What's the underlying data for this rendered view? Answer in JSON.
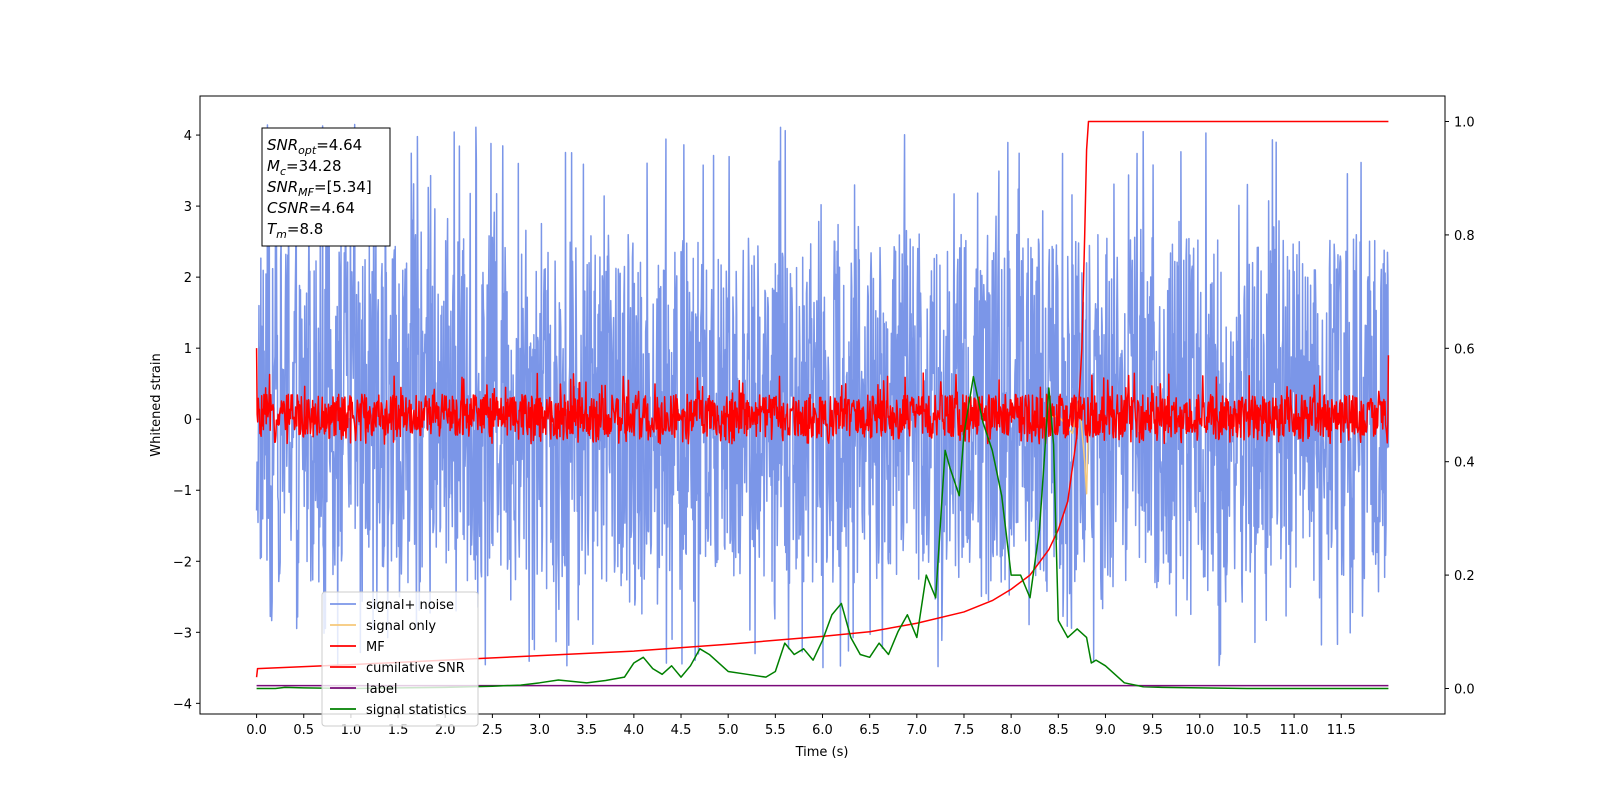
{
  "chart_data": {
    "type": "line",
    "title": "",
    "xlabel": "Time (s)",
    "ylabel": "Whitened strain",
    "xlim": [
      -0.6,
      12.6
    ],
    "ylim": [
      -4.15,
      4.55
    ],
    "y2lim": [
      -0.045,
      1.045
    ],
    "x_ticks": [
      0.0,
      0.5,
      1.0,
      1.5,
      2.0,
      2.5,
      3.0,
      3.5,
      4.0,
      4.5,
      5.0,
      5.5,
      6.0,
      6.5,
      7.0,
      7.5,
      8.0,
      8.5,
      9.0,
      9.5,
      10.0,
      10.5,
      11.0,
      11.5
    ],
    "x_tick_labels": [
      "0.0",
      "0.5",
      "1.0",
      "1.5",
      "2.0",
      "2.5",
      "3.0",
      "3.5",
      "4.0",
      "4.5",
      "5.0",
      "5.5",
      "6.0",
      "6.5",
      "7.0",
      "7.5",
      "8.0",
      "8.5",
      "9.0",
      "9.5",
      "10.0",
      "10.5",
      "11.0",
      "11.5"
    ],
    "y_ticks": [
      -4,
      -3,
      -2,
      -1,
      0,
      1,
      2,
      3,
      4
    ],
    "y_tick_labels": [
      "−4",
      "−3",
      "−2",
      "−1",
      "0",
      "1",
      "2",
      "3",
      "4"
    ],
    "y2_ticks": [
      0.0,
      0.2,
      0.4,
      0.6,
      0.8,
      1.0
    ],
    "y2_tick_labels": [
      "0.0",
      "0.2",
      "0.4",
      "0.6",
      "0.8",
      "1.0"
    ],
    "grid": false,
    "legend_placement": "lower-left",
    "series": [
      {
        "name": "signal+ noise",
        "axis": "left",
        "color": "#7b96e8",
        "kind": "noise",
        "t_range": [
          0.0,
          12.0
        ],
        "envelope_min": -3.5,
        "envelope_max": 4.15,
        "typical_range": [
          -2.3,
          2.6
        ]
      },
      {
        "name": "signal only",
        "axis": "left",
        "color": "#f6c87a",
        "kind": "chirp",
        "t_range": [
          8.3,
          8.82
        ],
        "x": [
          8.3,
          8.5,
          8.65,
          8.72,
          8.78,
          8.8,
          8.82
        ],
        "values": [
          0.0,
          0.05,
          -0.2,
          0.3,
          -0.6,
          -1.05,
          0.0
        ]
      },
      {
        "name": "MF",
        "axis": "left",
        "color": "#ff0000",
        "kind": "noise",
        "t_range": [
          0.0,
          12.0
        ],
        "envelope_min": -0.35,
        "envelope_max": 0.65,
        "typical_range": [
          -0.25,
          0.35
        ],
        "edge_values": {
          "start": 1.0,
          "end": 0.9
        }
      },
      {
        "name": "cumilative SNR",
        "axis": "right",
        "color": "#ff0000",
        "kind": "curve",
        "x": [
          0.0,
          0.01,
          1.0,
          2.0,
          3.0,
          4.0,
          5.0,
          6.0,
          6.5,
          7.0,
          7.5,
          7.8,
          8.0,
          8.2,
          8.4,
          8.5,
          8.6,
          8.7,
          8.75,
          8.78,
          8.8,
          8.82,
          8.85,
          12.0
        ],
        "values": [
          0.02,
          0.035,
          0.042,
          0.05,
          0.058,
          0.066,
          0.078,
          0.092,
          0.1,
          0.115,
          0.135,
          0.155,
          0.175,
          0.2,
          0.245,
          0.28,
          0.33,
          0.45,
          0.6,
          0.8,
          0.95,
          1.0,
          1.0,
          1.0
        ]
      },
      {
        "name": "label",
        "axis": "left",
        "color": "#7a0a7a",
        "kind": "curve",
        "x": [
          0.0,
          12.0
        ],
        "values": [
          -3.75,
          -3.75
        ]
      },
      {
        "name": "signal statistics",
        "axis": "right",
        "color": "#008000",
        "kind": "curve",
        "x": [
          0.0,
          0.2,
          0.3,
          0.5,
          1.0,
          1.5,
          2.0,
          2.5,
          2.8,
          3.0,
          3.2,
          3.5,
          3.7,
          3.9,
          4.0,
          4.1,
          4.2,
          4.3,
          4.4,
          4.5,
          4.6,
          4.7,
          4.8,
          5.0,
          5.2,
          5.4,
          5.5,
          5.6,
          5.7,
          5.8,
          5.9,
          6.0,
          6.1,
          6.2,
          6.3,
          6.4,
          6.5,
          6.6,
          6.7,
          6.8,
          6.9,
          7.0,
          7.1,
          7.2,
          7.3,
          7.35,
          7.45,
          7.5,
          7.6,
          7.7,
          7.8,
          7.9,
          8.0,
          8.1,
          8.2,
          8.3,
          8.35,
          8.4,
          8.45,
          8.5,
          8.6,
          8.7,
          8.8,
          8.85,
          8.9,
          9.0,
          9.1,
          9.2,
          9.4,
          9.6,
          10.0,
          10.5,
          11.0,
          11.5,
          12.0
        ],
        "values": [
          0.0,
          0.0,
          0.002,
          0.001,
          0.0,
          0.001,
          0.002,
          0.004,
          0.006,
          0.01,
          0.015,
          0.01,
          0.014,
          0.02,
          0.045,
          0.055,
          0.035,
          0.025,
          0.04,
          0.02,
          0.04,
          0.07,
          0.06,
          0.03,
          0.025,
          0.02,
          0.03,
          0.08,
          0.06,
          0.07,
          0.05,
          0.085,
          0.13,
          0.15,
          0.09,
          0.06,
          0.055,
          0.08,
          0.06,
          0.1,
          0.13,
          0.09,
          0.2,
          0.16,
          0.42,
          0.39,
          0.34,
          0.45,
          0.55,
          0.47,
          0.42,
          0.34,
          0.2,
          0.2,
          0.16,
          0.28,
          0.4,
          0.53,
          0.43,
          0.12,
          0.09,
          0.105,
          0.09,
          0.045,
          0.05,
          0.04,
          0.025,
          0.01,
          0.003,
          0.002,
          0.001,
          0.0,
          0.0,
          0.0,
          0.0
        ]
      }
    ],
    "annotation_box": {
      "lines": [
        {
          "symbol": "SNR",
          "sub": "opt",
          "text": "=4.64"
        },
        {
          "symbol": "M",
          "sub": "c",
          "text": "=34.28"
        },
        {
          "symbol": "SNR",
          "sub": "MF",
          "text": "=[5.34]"
        },
        {
          "symbol": "CSNR",
          "sub": "",
          "text": "=4.64"
        },
        {
          "symbol": "T",
          "sub": "m",
          "text": "=8.8"
        }
      ]
    }
  }
}
